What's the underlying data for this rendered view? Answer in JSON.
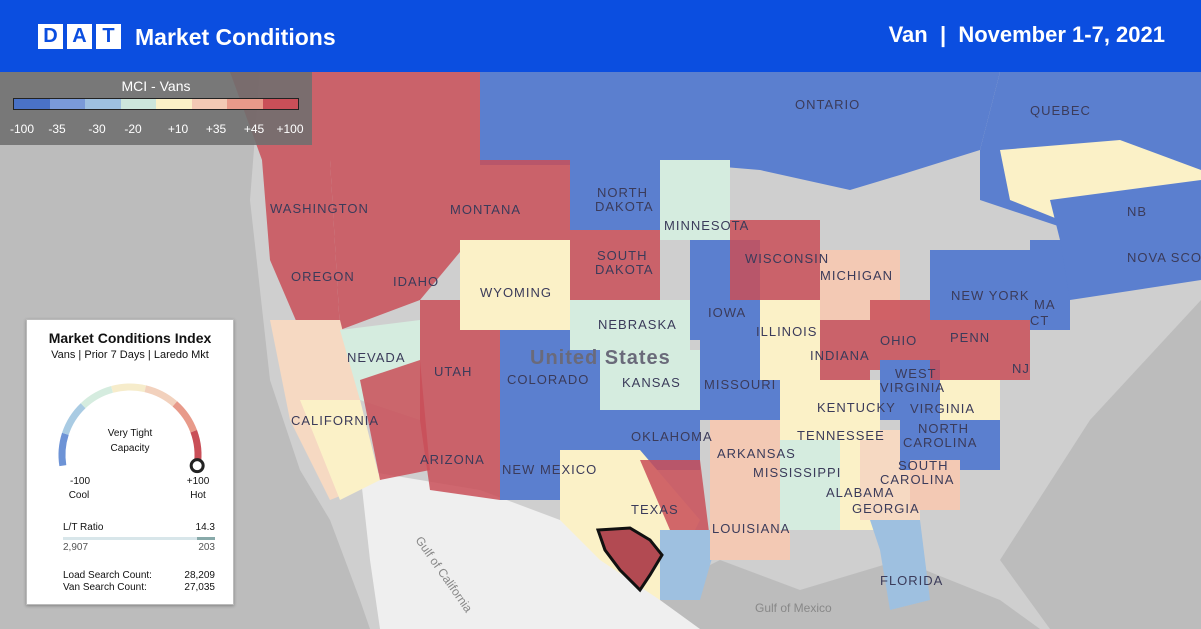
{
  "header": {
    "logo_letters": [
      "D",
      "A",
      "T"
    ],
    "title": "Market Conditions",
    "equipment": "Van",
    "date_range": "November 1-7, 2021"
  },
  "legend": {
    "title": "MCI - Vans",
    "ticks": [
      "-100",
      "-35",
      "-30",
      "-20",
      "+10",
      "+35",
      "+45",
      "+100"
    ],
    "segments": [
      {
        "color": "#4a72c6"
      },
      {
        "color": "#7a9ad8"
      },
      {
        "color": "#9ec0e0"
      },
      {
        "color": "#cce6dc"
      },
      {
        "color": "#fbf1c7"
      },
      {
        "color": "#f3c9b4"
      },
      {
        "color": "#e89a8a"
      },
      {
        "color": "#c94f58"
      }
    ]
  },
  "map_labels": {
    "states": [
      "WASHINGTON",
      "OREGON",
      "IDAHO",
      "MONTANA",
      "NORTH DAKOTA",
      "SOUTH DAKOTA",
      "WYOMING",
      "NEBRASKA",
      "NEVADA",
      "UTAH",
      "COLORADO",
      "KANSAS",
      "CALIFORNIA",
      "ARIZONA",
      "NEW MEXICO",
      "OKLAHOMA",
      "TEXAS",
      "MINNESOTA",
      "IOWA",
      "MISSOURI",
      "ARKANSAS",
      "LOUISIANA",
      "MISSISSIPPI",
      "ALABAMA",
      "GEORGIA",
      "FLORIDA",
      "TENNESSEE",
      "KENTUCKY",
      "ILLINOIS",
      "INDIANA",
      "OHIO",
      "MICHIGAN",
      "WISCONSIN",
      "WEST VIRGINIA",
      "VIRGINIA",
      "NORTH CAROLINA",
      "SOUTH CAROLINA",
      "PENN",
      "NEW YORK",
      "NJ",
      "CT",
      "MA",
      "NB",
      "NOVA SCO",
      "QUEBEC",
      "ONTARIO"
    ],
    "country": "United States",
    "water": [
      "Gulf of California",
      "Gulf of Mexico"
    ]
  },
  "info_card": {
    "title": "Market Conditions Index",
    "subtitle": "Vans | Prior 7 Days | Laredo Mkt",
    "gauge_status_line1": "Very Tight",
    "gauge_status_line2": "Capacity",
    "gauge_min": "-100",
    "gauge_max": "+100",
    "gauge_min_label": "Cool",
    "gauge_max_label": "Hot",
    "gauge_value": 100,
    "gauge_colors": [
      "#6d93d6",
      "#a9cbe3",
      "#d5ecdf",
      "#f6eccb",
      "#f2d1bd",
      "#e89a8a",
      "#c94f58"
    ],
    "lt_ratio_label": "L/T Ratio",
    "lt_ratio_value": "14.3",
    "load_count_short": "2,907",
    "truck_count_short": "203",
    "load_search_label": "Load Search Count:",
    "load_search_value": "28,209",
    "van_search_label": "Van Search Count:",
    "van_search_value": "27,035"
  }
}
